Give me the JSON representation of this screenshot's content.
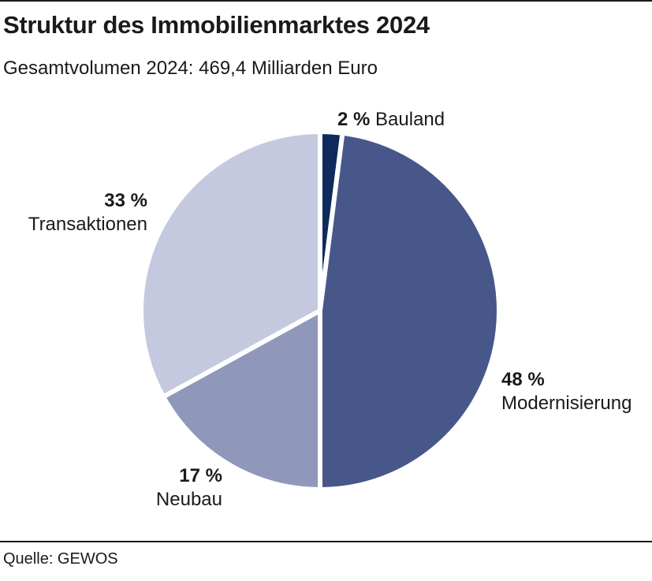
{
  "title": "Struktur des Immobilienmarktes 2024",
  "subtitle": "Gesamtvolumen 2024: 469,4 Milliarden Euro",
  "source": "Quelle: GEWOS",
  "chart_data": {
    "type": "pie",
    "title": "Struktur des Immobilienmarktes 2024",
    "subtitle": "Gesamtvolumen 2024: 469,4 Milliarden Euro",
    "slices": [
      {
        "name": "Bauland",
        "value": 2,
        "pct_label": "2 %",
        "color": "#0f2a5c"
      },
      {
        "name": "Modernisierung",
        "value": 48,
        "pct_label": "48 %",
        "color": "#48578a"
      },
      {
        "name": "Neubau",
        "value": 17,
        "pct_label": "17 %",
        "color": "#8f97bb"
      },
      {
        "name": "Transaktionen",
        "value": 33,
        "pct_label": "33 %",
        "color": "#c5c9df"
      }
    ],
    "start": "12 o'clock",
    "direction": "clockwise"
  }
}
